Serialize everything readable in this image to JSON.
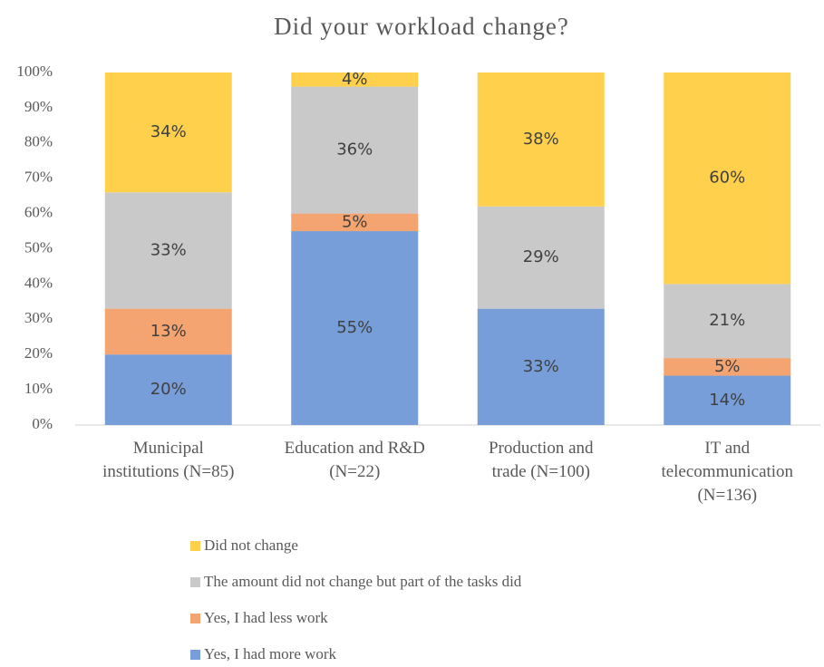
{
  "chart_data": {
    "type": "stacked_bar",
    "title": "Did your workload change?",
    "categories": [
      "Municipal\ninstitutions (N=85)",
      "Education and R&D\n(N=22)",
      "Production and\ntrade (N=100)",
      "IT and\ntelecommunication\n(N=136)"
    ],
    "series": [
      {
        "name": "Yes, I had more work",
        "color": "#779ed8",
        "values": [
          20,
          55,
          33,
          14
        ],
        "value_labels": [
          "20%",
          "55%",
          "33%",
          "14%"
        ]
      },
      {
        "name": "Yes, I had less work",
        "color": "#f4a470",
        "values": [
          13,
          5,
          null,
          5
        ],
        "value_labels": [
          "13%",
          "5%",
          null,
          "5%"
        ]
      },
      {
        "name": "The amount did not change but part of the tasks did",
        "color": "#c9c9c9",
        "values": [
          33,
          36,
          29,
          21
        ],
        "value_labels": [
          "33%",
          "36%",
          "29%",
          "21%"
        ]
      },
      {
        "name": "Did not change",
        "color": "#ffd04c",
        "values": [
          34,
          4,
          38,
          60
        ],
        "value_labels": [
          "34%",
          "4%",
          "38%",
          "60%"
        ]
      }
    ],
    "ylim": [
      0,
      100
    ],
    "yticks": [
      {
        "value": 0,
        "label": "0%"
      },
      {
        "value": 10,
        "label": "10%"
      },
      {
        "value": 20,
        "label": "20%"
      },
      {
        "value": 30,
        "label": "30%"
      },
      {
        "value": 40,
        "label": "40%"
      },
      {
        "value": 50,
        "label": "50%"
      },
      {
        "value": 60,
        "label": "60%"
      },
      {
        "value": 70,
        "label": "70%"
      },
      {
        "value": 80,
        "label": "80%"
      },
      {
        "value": 90,
        "label": "90%"
      },
      {
        "value": 100,
        "label": "100%"
      }
    ],
    "grid": false,
    "legend": "bottom"
  }
}
